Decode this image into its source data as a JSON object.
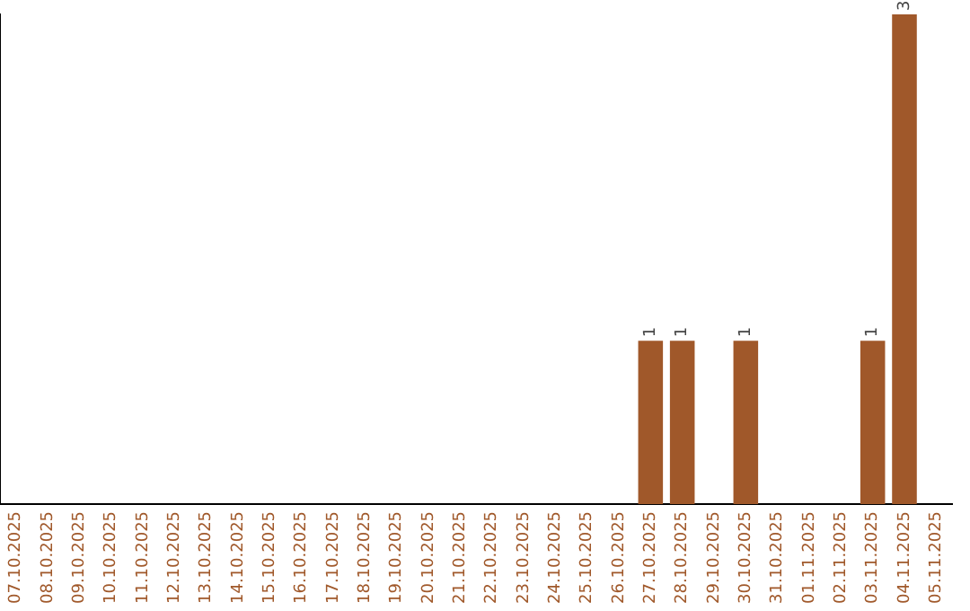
{
  "chart_data": {
    "type": "bar",
    "categories": [
      "07.10.2025",
      "08.10.2025",
      "09.10.2025",
      "10.10.2025",
      "11.10.2025",
      "12.10.2025",
      "13.10.2025",
      "14.10.2025",
      "15.10.2025",
      "16.10.2025",
      "17.10.2025",
      "18.10.2025",
      "19.10.2025",
      "20.10.2025",
      "21.10.2025",
      "22.10.2025",
      "23.10.2025",
      "24.10.2025",
      "25.10.2025",
      "26.10.2025",
      "27.10.2025",
      "28.10.2025",
      "29.10.2025",
      "30.10.2025",
      "31.10.2025",
      "01.11.2025",
      "02.11.2025",
      "03.11.2025",
      "04.11.2025",
      "05.11.2025"
    ],
    "values": [
      null,
      null,
      null,
      null,
      null,
      null,
      null,
      null,
      null,
      null,
      null,
      null,
      null,
      null,
      null,
      null,
      null,
      null,
      null,
      null,
      1,
      1,
      null,
      1,
      null,
      null,
      null,
      1,
      3,
      null
    ],
    "data_labels": true,
    "color": "#a0582a"
  }
}
